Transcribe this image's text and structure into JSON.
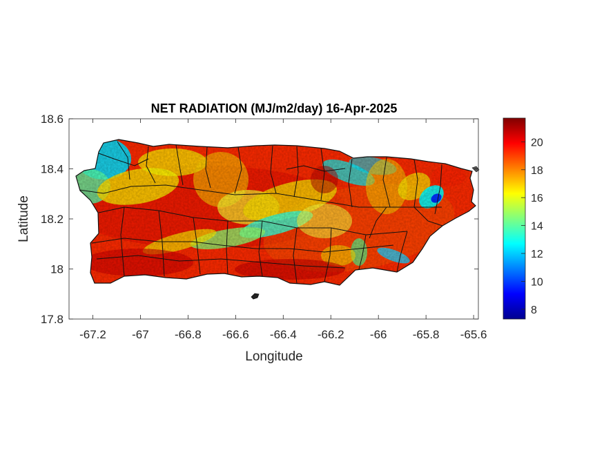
{
  "title": "NET RADIATION (MJ/m2/day) 16-Apr-2025",
  "xlabel": "Longitude",
  "ylabel": "Latitude",
  "x_ticks": [
    "-67.2",
    "-67",
    "-66.8",
    "-66.6",
    "-66.4",
    "-66.2",
    "-66",
    "-65.8",
    "-65.6"
  ],
  "y_ticks": [
    "18.6",
    "18.4",
    "18.2",
    "18",
    "17.8"
  ],
  "colorbar": {
    "ticks": [
      "20",
      "18",
      "16",
      "14",
      "12",
      "10",
      "8"
    ],
    "colormap": "jet",
    "range": [
      7.3,
      21.7
    ]
  },
  "map": {
    "xlim": [
      -67.3,
      -65.58
    ],
    "ylim": [
      17.8,
      18.6
    ],
    "region": "Puerto Rico",
    "boundaries": "municipalities (black outlines)",
    "value_pattern": {
      "dominant": "red / orange (18-21)",
      "low_zones": [
        "northwest coast cyan (~13-14)",
        "central cordillera band yellow-cyan",
        "northeast dark blue spot (~8)"
      ]
    }
  }
}
